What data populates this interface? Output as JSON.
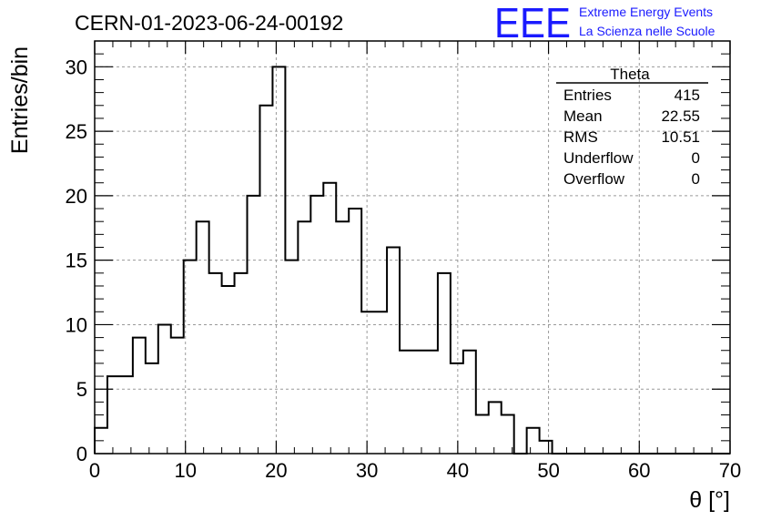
{
  "header": {
    "run_title": "CERN-01-2023-06-24-00192",
    "logo": {
      "mark": "EEE",
      "line1": "Extreme Energy Events",
      "line2": "La Scienza nelle Scuole",
      "color": "#1a1aff"
    }
  },
  "stats_box": {
    "title": "Theta",
    "rows": [
      {
        "label": "Entries",
        "value": "415"
      },
      {
        "label": "Mean",
        "value": "22.55"
      },
      {
        "label": "RMS",
        "value": "10.51"
      },
      {
        "label": "Underflow",
        "value": "0"
      },
      {
        "label": "Overflow",
        "value": "0"
      }
    ]
  },
  "chart_data": {
    "type": "bar",
    "histogram": true,
    "bin_width": 1.4,
    "bin_start": 0,
    "xlim": [
      0,
      70
    ],
    "ylim": [
      0,
      32
    ],
    "xlabel": "θ [°]",
    "ylabel": "Entries/bin",
    "x_ticks": [
      0,
      10,
      20,
      30,
      40,
      50,
      60,
      70
    ],
    "y_ticks": [
      0,
      5,
      10,
      15,
      20,
      25,
      30
    ],
    "grid": true,
    "values": [
      2,
      6,
      6,
      9,
      7,
      10,
      9,
      15,
      18,
      14,
      13,
      14,
      20,
      27,
      30,
      15,
      18,
      20,
      21,
      18,
      19,
      11,
      11,
      16,
      8,
      8,
      8,
      14,
      7,
      8,
      3,
      4,
      3,
      0,
      2,
      1,
      0,
      0,
      0,
      0,
      0,
      0,
      0,
      0,
      0,
      0,
      0,
      0,
      0,
      0
    ],
    "line_color": "#000000"
  }
}
